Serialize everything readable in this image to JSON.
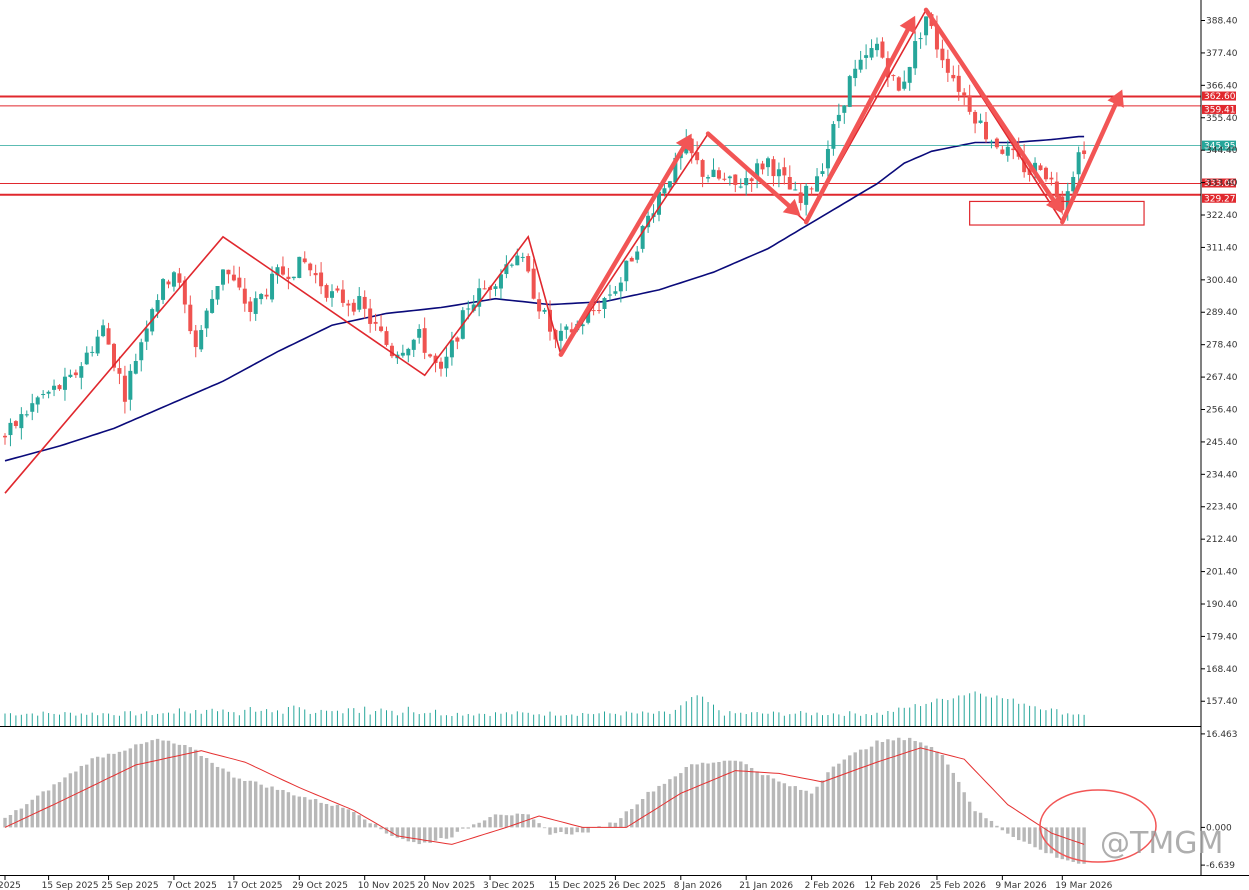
{
  "chart_data": [
    {
      "type": "candlestick",
      "title": "",
      "xlabel": "",
      "ylabel": "",
      "ylim": [
        149.0,
        394.0
      ],
      "y_ticks": [
        "388.40",
        "377.40",
        "366.40",
        "355.40",
        "344.40",
        "333.40",
        "322.40",
        "311.40",
        "300.40",
        "289.40",
        "278.40",
        "267.40",
        "256.40",
        "245.40",
        "234.40",
        "223.40",
        "212.40",
        "201.40",
        "190.40",
        "179.40",
        "168.40",
        "157.40"
      ],
      "x_tick_labels": [
        "2025",
        "15 Sep 2025",
        "25 Sep 2025",
        "7 Oct 2025",
        "17 Oct 2025",
        "29 Oct 2025",
        "10 Nov 2025",
        "20 Nov 2025",
        "3 Dec 2025",
        "15 Dec 2025",
        "26 Dec 2025",
        "8 Jan 2026",
        "21 Jan 2026",
        "2 Feb 2026",
        "12 Feb 2026",
        "25 Feb 2026",
        "9 Mar 2026",
        "19 Mar 2026"
      ],
      "x_tick_bar_index": [
        0,
        8,
        19,
        31,
        42,
        54,
        66,
        77,
        89,
        101,
        112,
        124,
        136,
        148,
        159,
        171,
        183,
        194
      ],
      "price_waypoints": [
        [
          0,
          247
        ],
        [
          6,
          260
        ],
        [
          12,
          266
        ],
        [
          18,
          284
        ],
        [
          22,
          262
        ],
        [
          27,
          292
        ],
        [
          31,
          304
        ],
        [
          35,
          278
        ],
        [
          40,
          305
        ],
        [
          45,
          290
        ],
        [
          50,
          302
        ],
        [
          55,
          306
        ],
        [
          60,
          295
        ],
        [
          65,
          292
        ],
        [
          71,
          276
        ],
        [
          76,
          281
        ],
        [
          80,
          268
        ],
        [
          85,
          292
        ],
        [
          89,
          299
        ],
        [
          94,
          310
        ],
        [
          98,
          292
        ],
        [
          101,
          279
        ],
        [
          107,
          288
        ],
        [
          113,
          300
        ],
        [
          120,
          330
        ],
        [
          125,
          345
        ],
        [
          128,
          337
        ],
        [
          134,
          332
        ],
        [
          140,
          341
        ],
        [
          146,
          326
        ],
        [
          150,
          340
        ],
        [
          155,
          368
        ],
        [
          160,
          380
        ],
        [
          164,
          364
        ],
        [
          169,
          390
        ],
        [
          171,
          380
        ],
        [
          175,
          366
        ],
        [
          180,
          350
        ],
        [
          183,
          345
        ],
        [
          188,
          337
        ],
        [
          190,
          340
        ],
        [
          194,
          327
        ],
        [
          197,
          343
        ],
        [
          198,
          346
        ]
      ],
      "moving_average": {
        "name": "MA",
        "color": "#0a0a7a",
        "points": [
          [
            0,
            239
          ],
          [
            10,
            244
          ],
          [
            20,
            250
          ],
          [
            30,
            258
          ],
          [
            40,
            266
          ],
          [
            50,
            276
          ],
          [
            60,
            285
          ],
          [
            70,
            289
          ],
          [
            80,
            291
          ],
          [
            90,
            294
          ],
          [
            100,
            292
          ],
          [
            110,
            293
          ],
          [
            120,
            297
          ],
          [
            130,
            303
          ],
          [
            140,
            311
          ],
          [
            150,
            322
          ],
          [
            160,
            333
          ],
          [
            165,
            340
          ],
          [
            170,
            344
          ],
          [
            178,
            347
          ],
          [
            185,
            347
          ],
          [
            192,
            348
          ],
          [
            197,
            349
          ]
        ]
      },
      "current_price": "345.95",
      "levels": [
        {
          "value": 362.6,
          "label": "362.60"
        },
        {
          "value": 359.41,
          "label": "359.41"
        },
        {
          "value": 333.09,
          "label": "333.09"
        },
        {
          "value": 329.27,
          "label": "329.27"
        }
      ],
      "zigzag": [
        [
          0,
          228
        ],
        [
          40,
          315
        ],
        [
          77,
          268
        ],
        [
          96,
          315
        ],
        [
          102,
          275
        ],
        [
          129,
          350
        ],
        [
          147,
          320
        ],
        [
          169,
          392
        ],
        [
          194,
          320
        ]
      ],
      "arrows": [
        [
          102,
          275,
          126,
          350
        ],
        [
          129,
          350,
          146,
          322
        ],
        [
          147,
          320,
          167,
          390
        ],
        [
          169,
          392,
          194,
          323
        ],
        [
          194,
          320,
          205,
          365
        ]
      ],
      "support_box": {
        "x1": 177,
        "x2": 209,
        "y1": 319,
        "y2": 327
      },
      "volume_pattern": "moderate, spikes near Jan 2026 and late Feb 2026"
    },
    {
      "type": "histogram",
      "name": "oscillator",
      "ylim": [
        -7.5,
        17.5
      ],
      "y_ticks": [
        "16.463",
        "0.000",
        "-6.639"
      ],
      "histogram_waypoints": [
        [
          0,
          1.5
        ],
        [
          16,
          12
        ],
        [
          28,
          15.5
        ],
        [
          34,
          14
        ],
        [
          42,
          9
        ],
        [
          56,
          5
        ],
        [
          64,
          3
        ],
        [
          70,
          -1
        ],
        [
          76,
          -3
        ],
        [
          82,
          -1.5
        ],
        [
          90,
          2.5
        ],
        [
          96,
          2
        ],
        [
          100,
          -1
        ],
        [
          106,
          -1
        ],
        [
          112,
          1
        ],
        [
          118,
          6
        ],
        [
          126,
          11
        ],
        [
          134,
          12
        ],
        [
          142,
          8
        ],
        [
          148,
          6
        ],
        [
          152,
          11
        ],
        [
          160,
          15
        ],
        [
          166,
          15.8
        ],
        [
          172,
          13
        ],
        [
          178,
          3
        ],
        [
          184,
          -1
        ],
        [
          190,
          -4
        ],
        [
          194,
          -5.5
        ],
        [
          198,
          -6.6
        ]
      ],
      "signal_waypoints": [
        [
          0,
          0
        ],
        [
          10,
          4.5
        ],
        [
          24,
          11
        ],
        [
          36,
          13.5
        ],
        [
          44,
          11.5
        ],
        [
          54,
          7
        ],
        [
          64,
          3
        ],
        [
          72,
          -1.5
        ],
        [
          82,
          -3
        ],
        [
          92,
          0
        ],
        [
          98,
          2
        ],
        [
          106,
          0
        ],
        [
          114,
          0
        ],
        [
          124,
          6
        ],
        [
          134,
          10
        ],
        [
          142,
          9.5
        ],
        [
          150,
          8
        ],
        [
          160,
          11.5
        ],
        [
          168,
          14
        ],
        [
          176,
          12
        ],
        [
          184,
          4
        ],
        [
          192,
          -1
        ],
        [
          198,
          -3
        ]
      ],
      "highlight": "oval around latest bars near zero line"
    }
  ],
  "watermark": "@TMGM",
  "colors": {
    "bull": "#26a69a",
    "bear": "#ef5350",
    "level": "#e0282e",
    "annotation": "#f25555",
    "ma": "#0a0a7a",
    "current": "#26a69a",
    "histogram": "#b8b8b8",
    "signal": "#e53030"
  }
}
